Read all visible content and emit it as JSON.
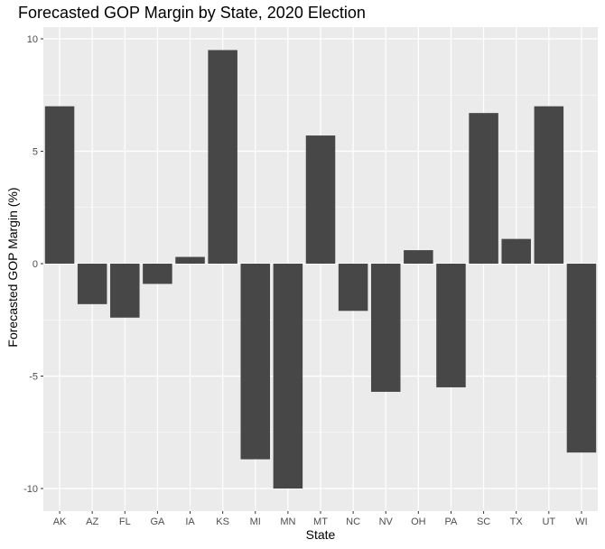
{
  "chart_data": {
    "type": "bar",
    "title": "Forecasted GOP Margin by State, 2020 Election",
    "xlabel": "State",
    "ylabel": "Forecasted GOP Margin (%)",
    "categories": [
      "AK",
      "AZ",
      "FL",
      "GA",
      "IA",
      "KS",
      "MI",
      "MN",
      "MT",
      "NC",
      "NV",
      "OH",
      "PA",
      "SC",
      "TX",
      "UT",
      "WI"
    ],
    "values": [
      7.0,
      -1.8,
      -2.4,
      -0.9,
      0.3,
      9.5,
      -8.7,
      -10.0,
      5.7,
      -2.1,
      -5.7,
      0.6,
      -5.5,
      6.7,
      1.1,
      7.0,
      -8.4
    ],
    "ylim": [
      -10.5,
      10.5
    ],
    "yticks": [
      -10,
      -5,
      0,
      5,
      10
    ],
    "ytick_labels": [
      "-10",
      "-5",
      "0",
      "5",
      "10"
    ],
    "grid": true,
    "colors": {
      "bar": "#474747",
      "panel": "#ebebeb",
      "grid": "#ffffff"
    }
  }
}
